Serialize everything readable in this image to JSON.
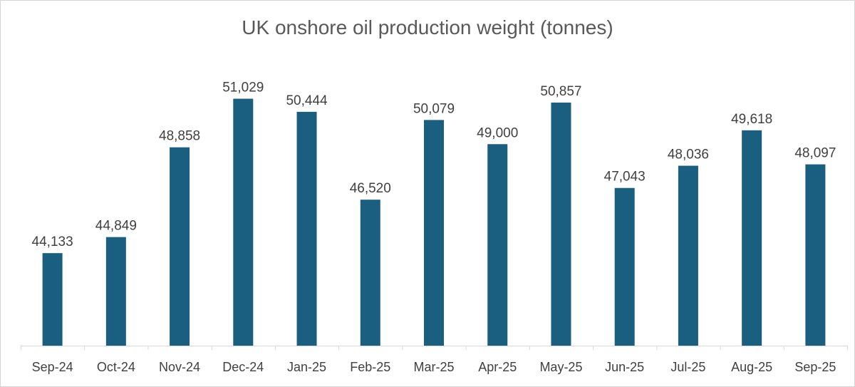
{
  "chart_data": {
    "type": "bar",
    "title": "UK onshore oil production weight (tonnes)",
    "xlabel": "",
    "ylabel": "",
    "categories": [
      "Sep-24",
      "Oct-24",
      "Nov-24",
      "Dec-24",
      "Jan-25",
      "Feb-25",
      "Mar-25",
      "Apr-25",
      "May-25",
      "Jun-25",
      "Jul-25",
      "Aug-25",
      "Sep-25"
    ],
    "values": [
      44133,
      44849,
      48858,
      51029,
      50444,
      46520,
      50079,
      49000,
      50857,
      47043,
      48036,
      49618,
      48097
    ],
    "data_labels": [
      "44,133",
      "44,849",
      "48,858",
      "51,029",
      "50,444",
      "46,520",
      "50,079",
      "49,000",
      "50,857",
      "47,043",
      "48,036",
      "49,618",
      "48,097"
    ],
    "ylim": [
      40000,
      52000
    ],
    "grid": false,
    "legend": "none",
    "bar_color": "#1a5f7f",
    "axis_color": "#d9d9d9"
  }
}
